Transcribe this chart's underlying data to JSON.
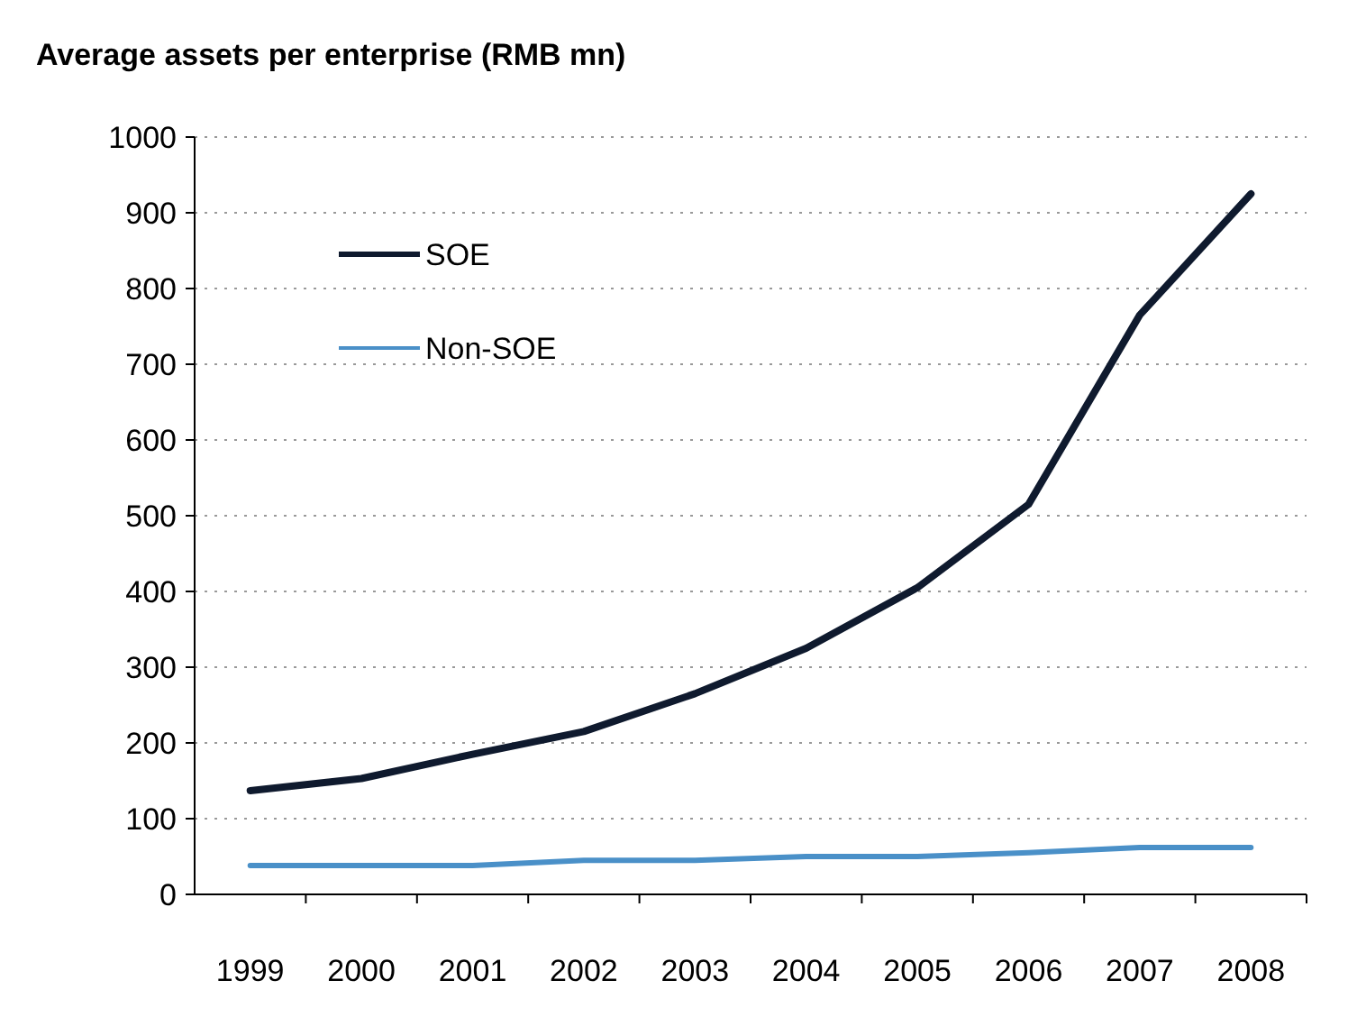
{
  "chart_data": {
    "type": "line",
    "title": "Average assets per enterprise (RMB mn)",
    "categories": [
      "1999",
      "2000",
      "2001",
      "2002",
      "2003",
      "2004",
      "2005",
      "2006",
      "2007",
      "2008"
    ],
    "series": [
      {
        "name": "SOE",
        "color": "#0f1a2e",
        "values": [
          137,
          153,
          185,
          215,
          265,
          325,
          405,
          515,
          765,
          925
        ]
      },
      {
        "name": "Non-SOE",
        "color": "#4a90c8",
        "values": [
          38,
          38,
          38,
          45,
          45,
          50,
          50,
          55,
          62,
          62
        ]
      }
    ],
    "ylim": [
      0,
      1000
    ],
    "yticks": [
      0,
      100,
      200,
      300,
      400,
      500,
      600,
      700,
      800,
      900,
      1000
    ],
    "grid": "y",
    "legend": "top left",
    "marker": "none",
    "line_style": "solid"
  }
}
